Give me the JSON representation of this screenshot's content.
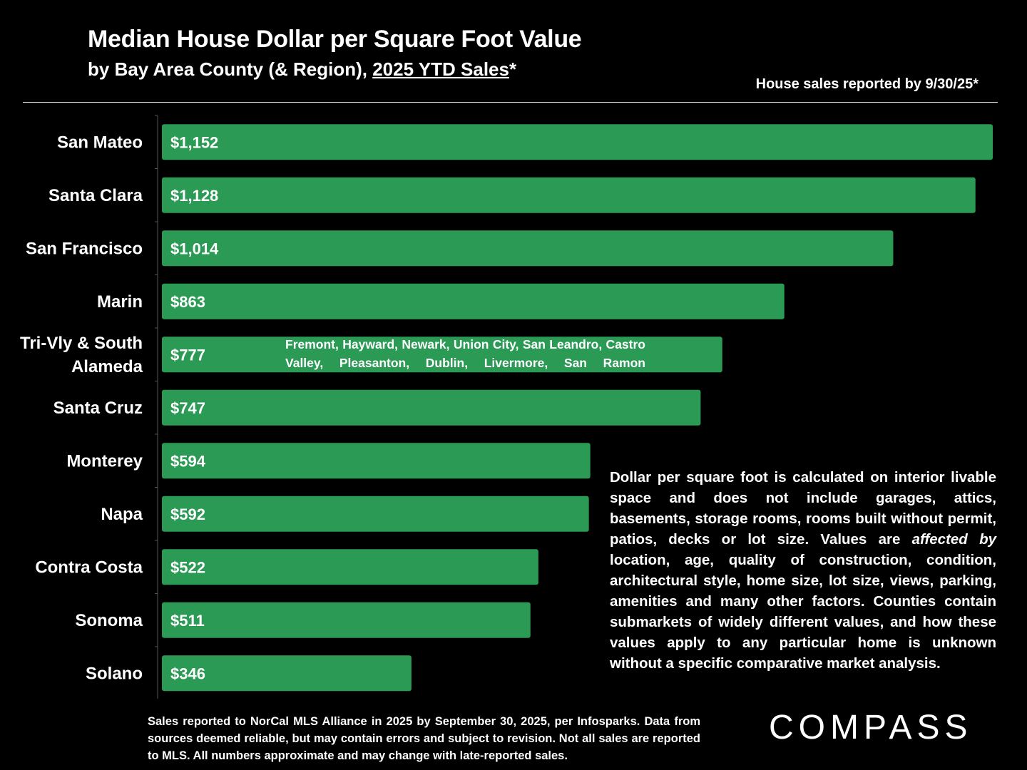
{
  "header": {
    "title": "Median House Dollar per Square Foot Value",
    "subtitle_prefix": "by Bay Area County (& Region), ",
    "subtitle_underlined": "2025 YTD Sales",
    "subtitle_suffix": "*",
    "note": "House sales reported by 9/30/25*"
  },
  "chart_data": {
    "type": "bar",
    "orientation": "horizontal",
    "categories": [
      "San Mateo",
      "Santa Clara",
      "San Francisco",
      "Marin",
      "Tri-Vly & South Alameda",
      "Santa Cruz",
      "Monterey",
      "Napa",
      "Contra Costa",
      "Sonoma",
      "Solano"
    ],
    "category_lines": [
      [
        "San Mateo"
      ],
      [
        "Santa Clara"
      ],
      [
        "San Francisco"
      ],
      [
        "Marin"
      ],
      [
        "Tri-Vly & South",
        "Alameda"
      ],
      [
        "Santa Cruz"
      ],
      [
        "Monterey"
      ],
      [
        "Napa"
      ],
      [
        "Contra Costa"
      ],
      [
        "Sonoma"
      ],
      [
        "Solano"
      ]
    ],
    "values": [
      1152,
      1128,
      1014,
      863,
      777,
      747,
      594,
      592,
      522,
      511,
      346
    ],
    "value_labels": [
      "$1,152",
      "$1,128",
      "$1,014",
      "$863",
      "$777",
      "$747",
      "$594",
      "$592",
      "$522",
      "$511",
      "$346"
    ],
    "xlim": [
      0,
      1152
    ],
    "bar_color": "#2a9a55",
    "grid": false,
    "legend": "none"
  },
  "annotation": {
    "text": "Fremont, Hayward, Newark, Union City, San Leandro, Castro Valley, Pleasanton, Dublin, Livermore, San Ramon"
  },
  "explanation": {
    "text_before": "Dollar per square foot is calculated on interior livable space and does not include garages, attics, basements, storage rooms, rooms built without permit, patios, decks or lot size. Values are ",
    "text_italic": "affected by",
    "text_after": " location, age, quality of construction, condition, architectural style, home size, lot size, views, parking, amenities and many other factors. Counties contain submarkets of widely different values, and how these values apply to any particular home is unknown without a specific comparative market analysis."
  },
  "footer": {
    "text": "Sales reported to NorCal MLS Alliance in 2025 by September 30, 2025, per Infosparks. Data from sources deemed reliable, but may contain errors and subject to revision. Not all sales are reported to MLS. All numbers approximate and may change with late-reported sales."
  },
  "logo": {
    "text": "COMPASS"
  }
}
